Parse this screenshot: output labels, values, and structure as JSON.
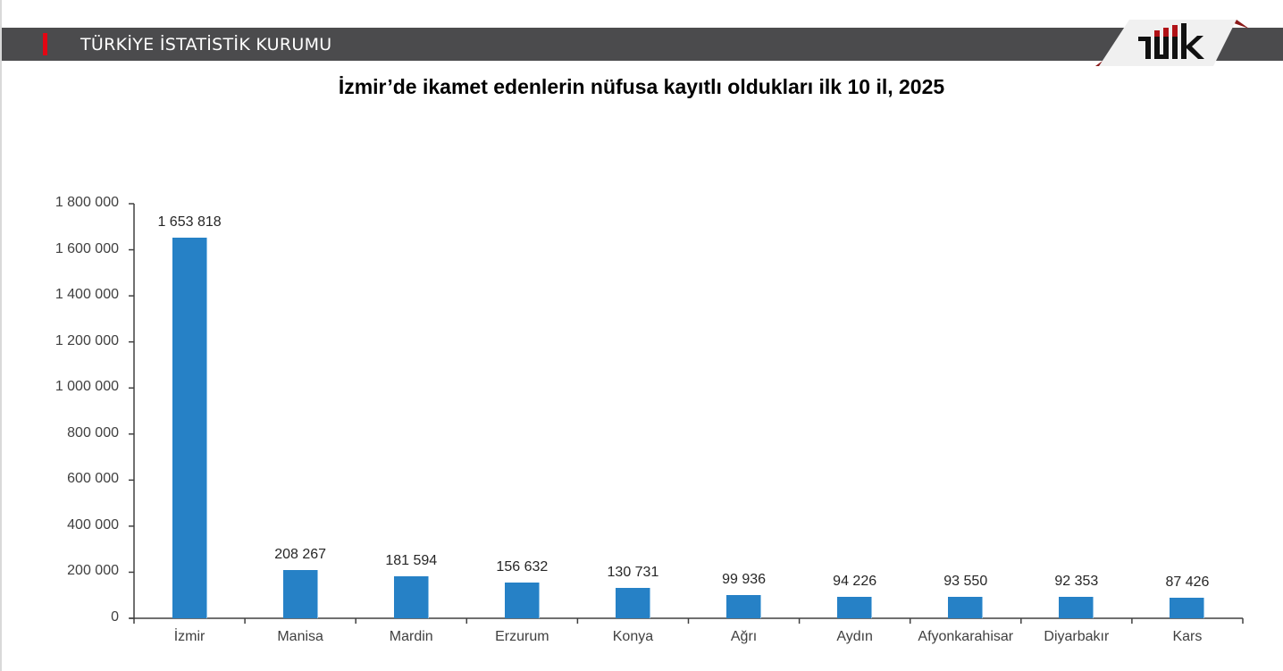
{
  "header": {
    "organization": "TÜRKİYE İSTATİSTİK KURUMU",
    "logo_text": "tuik",
    "accent_color": "#e30613",
    "bar_color": "#4b4b4d"
  },
  "chart_data": {
    "type": "bar",
    "title": "İzmir’de ikamet edenlerin nüfusa kayıtlı oldukları ilk 10 il, 2025",
    "xlabel": "",
    "ylabel": "",
    "categories": [
      "İzmir",
      "Manisa",
      "Mardin",
      "Erzurum",
      "Konya",
      "Ağrı",
      "Aydın",
      "Afyonkarahisar",
      "Diyarbakır",
      "Kars"
    ],
    "values": [
      1653818,
      208267,
      181594,
      156632,
      130731,
      99936,
      94226,
      93550,
      92353,
      87426
    ],
    "value_labels": [
      "1 653 818",
      "208 267",
      "181 594",
      "156 632",
      "130 731",
      "99 936",
      "94 226",
      "93 550",
      "92 353",
      "87 426"
    ],
    "ylim": [
      0,
      1800000
    ],
    "yticks": [
      0,
      200000,
      400000,
      600000,
      800000,
      1000000,
      1200000,
      1400000,
      1600000,
      1800000
    ],
    "ytick_labels": [
      "0",
      "200 000",
      "400 000",
      "600 000",
      "800 000",
      "1 000 000",
      "1 200 000",
      "1 400 000",
      "1 600 000",
      "1 800 000"
    ],
    "grid": false,
    "legend": null,
    "bar_color": "#2681c6"
  }
}
